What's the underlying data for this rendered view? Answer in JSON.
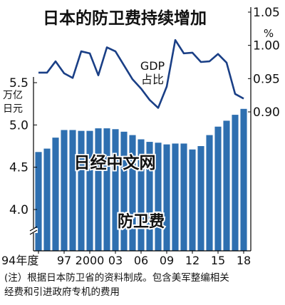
{
  "chart_data": {
    "type": "bar+line",
    "title": "日本的防卫费持续增加",
    "x": [
      1994,
      1995,
      1996,
      1997,
      1998,
      1999,
      2000,
      2001,
      2002,
      2003,
      2004,
      2005,
      2006,
      2007,
      2008,
      2009,
      2010,
      2011,
      2012,
      2013,
      2014,
      2015,
      2016,
      2017,
      2018
    ],
    "x_tick_labels": [
      "94年度",
      "97",
      "2000",
      "03",
      "06",
      "09",
      "12",
      "15",
      "18"
    ],
    "x_tick_years": [
      1994,
      1997,
      2000,
      2003,
      2006,
      2009,
      2012,
      2015,
      2018
    ],
    "left_axis": {
      "unit_lines": [
        "万亿",
        "日元"
      ],
      "ticks": [
        "5.5",
        "5.0",
        "4.5",
        "4.0"
      ],
      "tick_values": [
        5.5,
        5.0,
        4.5,
        4.0
      ],
      "ylim": [
        3.7,
        5.6
      ],
      "axis_break": true
    },
    "right_axis": {
      "unit": "%",
      "ticks": [
        "1.05",
        "1.00",
        "0.95",
        "0.90"
      ],
      "tick_values": [
        1.05,
        1.0,
        0.95,
        0.9
      ],
      "ylim": [
        0.89,
        1.065
      ]
    },
    "series": [
      {
        "name": "防卫费",
        "axis": "left",
        "type": "bar",
        "color": "#2e6fb0",
        "values": [
          4.68,
          4.72,
          4.85,
          4.94,
          4.94,
          4.93,
          4.93,
          4.96,
          4.96,
          4.95,
          4.92,
          4.88,
          4.83,
          4.8,
          4.79,
          4.77,
          4.78,
          4.78,
          4.71,
          4.75,
          4.88,
          4.98,
          5.05,
          5.12,
          5.19
        ]
      },
      {
        "name": "GDP占比",
        "label_lines": [
          "GDP",
          "占比"
        ],
        "axis": "right",
        "type": "line",
        "color": "#1a3f86",
        "values": [
          0.959,
          0.959,
          0.976,
          0.958,
          0.951,
          0.991,
          0.988,
          0.955,
          0.997,
          0.991,
          0.97,
          0.949,
          0.935,
          0.918,
          0.906,
          0.938,
          1.008,
          0.988,
          0.989,
          0.975,
          0.976,
          0.987,
          0.974,
          0.927,
          0.92
        ]
      }
    ],
    "grid": false
  },
  "watermark": "日经中文网",
  "note": {
    "line1": "(注）根据日本防卫省的资料制成。包含美军整编相关",
    "line2": "经费和引进政府专机的费用"
  }
}
